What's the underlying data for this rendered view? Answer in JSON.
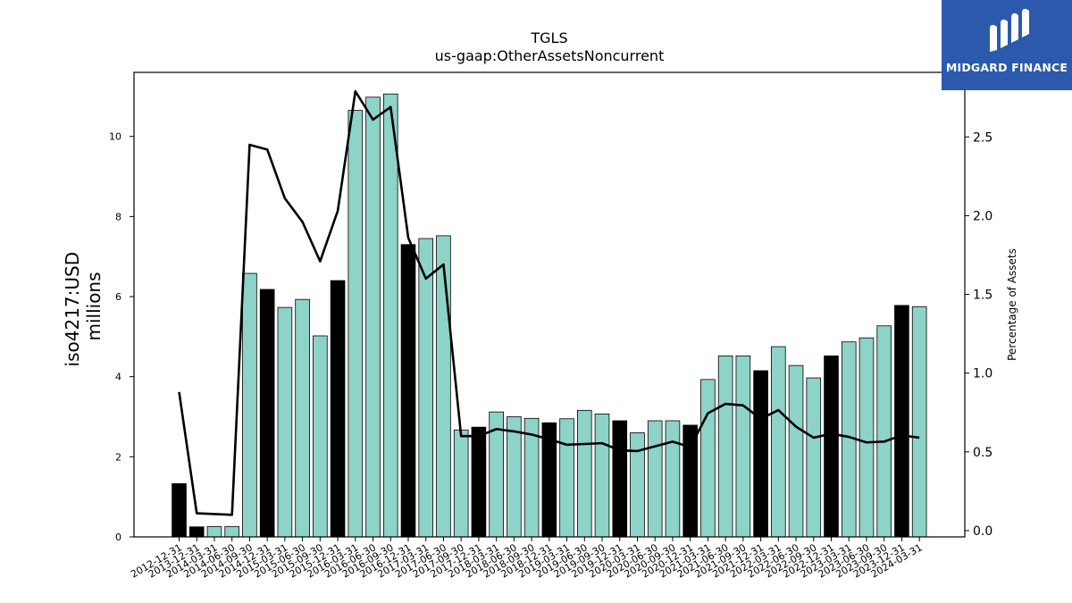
{
  "brand": {
    "name": "MIDGARD FINANCE",
    "logo_icon": "midgard-mark-icon",
    "color": "#2b5aad"
  },
  "colors": {
    "bar_default": "#8dd3c7",
    "bar_highlight": "#000000",
    "line": "#000000"
  },
  "chart_data": {
    "type": "bar",
    "title": "TGLS",
    "subtitle": "us-gaap:OtherAssetsNoncurrent",
    "ylabel": "iso4217:USD\nmillions",
    "y2label": "Percentage of Assets",
    "ylim": [
      0,
      11.6
    ],
    "y2lim": [
      -0.04,
      2.91
    ],
    "yticks": [
      0,
      2,
      4,
      6,
      8,
      10
    ],
    "y2ticks": [
      0.0,
      0.5,
      1.0,
      1.5,
      2.0,
      2.5
    ],
    "categories": [
      "2012-12-31",
      "2013-12-31",
      "2014-03-31",
      "2014-06-30",
      "2014-09-30",
      "2014-12-31",
      "2015-03-31",
      "2015-06-30",
      "2015-09-30",
      "2015-12-31",
      "2016-03-31",
      "2016-06-30",
      "2016-09-30",
      "2016-12-31",
      "2017-03-31",
      "2017-06-30",
      "2017-09-30",
      "2017-12-31",
      "2018-03-31",
      "2018-06-30",
      "2018-09-30",
      "2018-12-31",
      "2019-03-31",
      "2019-06-30",
      "2019-09-30",
      "2019-12-31",
      "2020-03-31",
      "2020-06-30",
      "2020-09-30",
      "2020-12-31",
      "2021-03-31",
      "2021-06-30",
      "2021-09-30",
      "2021-12-31",
      "2022-03-31",
      "2022-06-30",
      "2022-09-30",
      "2022-12-31",
      "2023-03-31",
      "2023-06-30",
      "2023-09-30",
      "2023-12-31",
      "2024-03-31"
    ],
    "series": [
      {
        "type": "bar",
        "values": [
          1.33,
          0.25,
          0.26,
          0.26,
          6.58,
          6.18,
          5.73,
          5.93,
          5.02,
          6.4,
          10.65,
          10.98,
          11.06,
          7.3,
          7.45,
          7.52,
          2.67,
          2.74,
          3.12,
          3.0,
          2.96,
          2.85,
          2.95,
          3.16,
          3.07,
          2.9,
          2.6,
          2.9,
          2.9,
          2.79,
          3.93,
          4.52,
          4.52,
          4.15,
          4.75,
          4.28,
          3.97,
          4.52,
          4.87,
          4.97,
          5.27,
          5.78,
          5.75
        ],
        "highlight": [
          true,
          true,
          false,
          false,
          false,
          true,
          false,
          false,
          false,
          true,
          false,
          false,
          false,
          true,
          false,
          false,
          false,
          true,
          false,
          false,
          false,
          true,
          false,
          false,
          false,
          true,
          false,
          false,
          false,
          true,
          false,
          false,
          false,
          true,
          false,
          false,
          false,
          true,
          false,
          false,
          false,
          true,
          false
        ]
      },
      {
        "type": "line",
        "axis": "right",
        "values": [
          0.88,
          0.11,
          0.105,
          0.1,
          2.45,
          2.42,
          2.11,
          1.96,
          1.71,
          2.03,
          2.79,
          2.61,
          2.69,
          1.86,
          1.6,
          1.69,
          0.6,
          0.6,
          0.645,
          0.63,
          0.61,
          0.58,
          0.545,
          0.55,
          0.555,
          0.51,
          0.505,
          0.535,
          0.565,
          0.53,
          0.745,
          0.805,
          0.795,
          0.71,
          0.765,
          0.66,
          0.59,
          0.615,
          0.595,
          0.56,
          0.565,
          0.605,
          0.59
        ]
      }
    ],
    "grid": false
  }
}
